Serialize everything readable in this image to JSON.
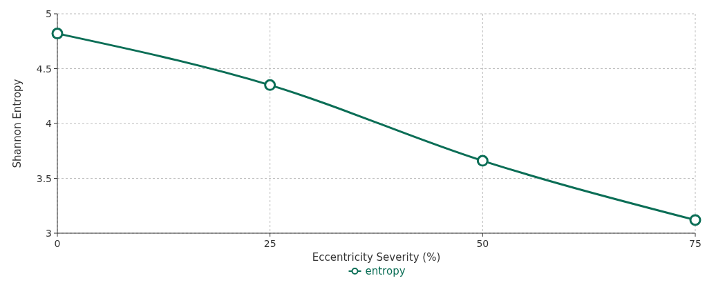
{
  "chart_data": {
    "type": "line",
    "xlabel": "Eccentricity Severity (%)",
    "ylabel": "Shannon Entropy",
    "x": [
      0,
      25,
      50,
      75
    ],
    "series": [
      {
        "name": "entropy",
        "color": "#0b6e56",
        "values": [
          4.82,
          4.35,
          3.66,
          3.12
        ]
      }
    ],
    "xlim": [
      0,
      75
    ],
    "xticks": [
      0,
      25,
      50,
      75
    ],
    "ylim": [
      3,
      5
    ],
    "yticks": [
      3,
      {
        "value": 3.5,
        "label": "3.5"
      },
      4,
      {
        "value": 4.5,
        "label": "4.5"
      },
      5
    ],
    "grid": true,
    "legend": "bottom",
    "marker": "circle",
    "line_style": "solid"
  }
}
